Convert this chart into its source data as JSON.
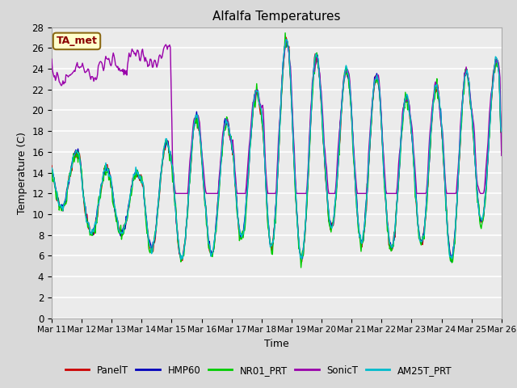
{
  "title": "Alfalfa Temperatures",
  "xlabel": "Time",
  "ylabel": "Temperature (C)",
  "ylim": [
    0,
    28
  ],
  "annotation": "TA_met",
  "annotation_color": "#8B0000",
  "annotation_bg": "#FFFFCC",
  "bg_color": "#D9D9D9",
  "plot_bg": "#EBEBEB",
  "grid_color": "#FFFFFF",
  "legend_entries": [
    "PanelT",
    "HMP60",
    "NR01_PRT",
    "SonicT",
    "AM25T_PRT"
  ],
  "line_colors": [
    "#CC0000",
    "#0000BB",
    "#00CC00",
    "#9900AA",
    "#00BBCC"
  ],
  "line_widths": [
    1.0,
    1.0,
    1.0,
    1.0,
    1.0
  ],
  "xtick_labels": [
    "Mar 11",
    "Mar 12",
    "Mar 13",
    "Mar 14",
    "Mar 15",
    "Mar 16",
    "Mar 17",
    "Mar 18",
    "Mar 19",
    "Mar 20",
    "Mar 21",
    "Mar 22",
    "Mar 23",
    "Mar 24",
    "Mar 25",
    "Mar 26"
  ],
  "n_points": 600
}
